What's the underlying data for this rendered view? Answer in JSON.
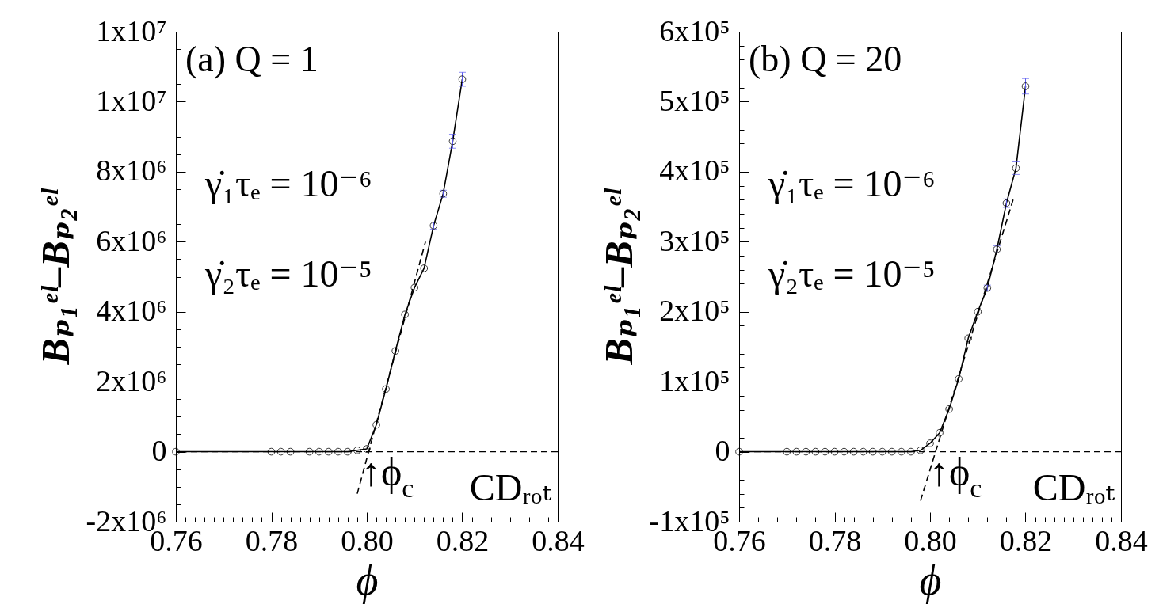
{
  "chart_data": [
    {
      "type": "line",
      "title": "(a) Q = 1",
      "xlabel": "ϕ",
      "ylabel": "Bₚ₁ᵉˡ–Bₚ₂ᵉˡ",
      "x": [
        0.76,
        0.78,
        0.782,
        0.784,
        0.788,
        0.79,
        0.792,
        0.794,
        0.796,
        0.798,
        0.8,
        0.802,
        0.804,
        0.806,
        0.808,
        0.81,
        0.812,
        0.814,
        0.816,
        0.818,
        0.82
      ],
      "series": [
        {
          "color": "#000000",
          "marker": "circle",
          "values": [
            0,
            0,
            0,
            0,
            0,
            0,
            0,
            0,
            0,
            40000,
            80000,
            770000,
            1790000,
            2880000,
            3920000,
            4690000,
            5240000,
            6460000,
            7370000,
            8870000,
            10640000
          ],
          "errors": [
            null,
            null,
            null,
            null,
            null,
            null,
            null,
            null,
            null,
            null,
            null,
            null,
            null,
            null,
            null,
            null,
            null,
            100000,
            100000,
            200000,
            200000
          ]
        },
        {
          "color": "#000000",
          "line_style": "dashed",
          "x": [
            0.798,
            0.8123
          ],
          "values": [
            -1200000,
            6000000
          ]
        }
      ],
      "xlim": [
        0.76,
        0.84
      ],
      "xticks": [
        0.76,
        {
          "value": 0.762,
          "label": null
        },
        {
          "value": 0.764,
          "label": null
        },
        {
          "value": 0.766,
          "label": null
        },
        {
          "value": 0.768,
          "label": null
        },
        {
          "value": 0.77,
          "label": null
        },
        {
          "value": 0.772,
          "label": null
        },
        {
          "value": 0.774,
          "label": null
        },
        {
          "value": 0.776,
          "label": null
        },
        {
          "value": 0.778,
          "label": null
        },
        0.78,
        {
          "value": 0.782,
          "label": null
        },
        {
          "value": 0.784,
          "label": null
        },
        {
          "value": 0.786,
          "label": null
        },
        {
          "value": 0.788,
          "label": null
        },
        {
          "value": 0.79,
          "label": null
        },
        {
          "value": 0.792,
          "label": null
        },
        {
          "value": 0.794,
          "label": null
        },
        {
          "value": 0.796,
          "label": null
        },
        {
          "value": 0.798,
          "label": null
        },
        {
          "value": 0.8,
          "label": "0.80"
        },
        {
          "value": 0.802,
          "label": null
        },
        {
          "value": 0.804,
          "label": null
        },
        {
          "value": 0.806,
          "label": null
        },
        {
          "value": 0.808,
          "label": null
        },
        {
          "value": 0.81,
          "label": null
        },
        {
          "value": 0.812,
          "label": null
        },
        {
          "value": 0.814,
          "label": null
        },
        {
          "value": 0.816,
          "label": null
        },
        {
          "value": 0.818,
          "label": null
        },
        0.82,
        {
          "value": 0.822,
          "label": null
        },
        {
          "value": 0.824,
          "label": null
        },
        {
          "value": 0.826,
          "label": null
        },
        {
          "value": 0.828,
          "label": null
        },
        {
          "value": 0.83,
          "label": null
        },
        {
          "value": 0.832,
          "label": null
        },
        {
          "value": 0.834,
          "label": null
        },
        {
          "value": 0.836,
          "label": null
        },
        {
          "value": 0.838,
          "label": null
        },
        0.84
      ],
      "ylim": [
        -2000000,
        12000000
      ],
      "yticks": [
        {
          "value": -2000000,
          "label": "-2x10⁶"
        },
        {
          "value": -1500000,
          "label": null
        },
        {
          "value": -1000000,
          "label": null
        },
        {
          "value": -500000,
          "label": null
        },
        0,
        {
          "value": 500000,
          "label": null
        },
        {
          "value": 1000000,
          "label": null
        },
        {
          "value": 1500000,
          "label": null
        },
        {
          "value": 2000000,
          "label": "2x10⁶"
        },
        {
          "value": 2500000,
          "label": null
        },
        {
          "value": 3000000,
          "label": null
        },
        {
          "value": 3500000,
          "label": null
        },
        {
          "value": 4000000,
          "label": "4x10⁶"
        },
        {
          "value": 4500000,
          "label": null
        },
        {
          "value": 5000000,
          "label": null
        },
        {
          "value": 5500000,
          "label": null
        },
        {
          "value": 6000000,
          "label": "6x10⁶"
        },
        {
          "value": 6500000,
          "label": null
        },
        {
          "value": 7000000,
          "label": null
        },
        {
          "value": 7500000,
          "label": null
        },
        {
          "value": 8000000,
          "label": "8x10⁶"
        },
        {
          "value": 8500000,
          "label": null
        },
        {
          "value": 9000000,
          "label": null
        },
        {
          "value": 9500000,
          "label": null
        },
        {
          "value": 10000000,
          "label": "1x10⁷"
        },
        {
          "value": 10500000,
          "label": null
        },
        {
          "value": 11000000,
          "label": null
        },
        {
          "value": 11500000,
          "label": null
        },
        {
          "value": 12000000,
          "label": "1x10⁷"
        }
      ],
      "ref_lines": [
        {
          "axis": "y",
          "value": 0,
          "line_style": "dashed",
          "color": "#000000"
        }
      ],
      "annotations": [
        "γ̇₁τₑ = 10⁻⁶",
        "γ̇₂τₑ = 10⁻⁵",
        {
          "text": "↑ϕ$_{c}$",
          "x": 0.8005,
          "y": 0
        },
        "CDᵣₒₜ"
      ]
    },
    {
      "type": "line",
      "title": "(b) Q = 20",
      "xlabel": "ϕ",
      "ylabel": "Bₚ₁ᵉˡ–Bₚ₂ᵉˡ",
      "x": [
        0.76,
        0.77,
        0.772,
        0.774,
        0.776,
        0.778,
        0.78,
        0.782,
        0.784,
        0.786,
        0.788,
        0.79,
        0.792,
        0.794,
        0.796,
        0.798,
        0.8,
        0.802,
        0.804,
        0.806,
        0.808,
        0.81,
        0.812,
        0.814,
        0.816,
        0.818,
        0.82
      ],
      "series": [
        {
          "color": "#000000",
          "marker": "circle",
          "values": [
            0,
            0,
            0,
            0,
            0,
            0,
            0,
            0,
            0,
            0,
            0,
            0,
            0,
            0,
            0,
            2000,
            12000,
            27000,
            61000,
            104000,
            162000,
            200000,
            234000,
            289000,
            355000,
            405000,
            522000
          ],
          "errors": [
            null,
            null,
            null,
            null,
            null,
            null,
            null,
            null,
            null,
            null,
            null,
            null,
            null,
            null,
            null,
            null,
            null,
            null,
            null,
            null,
            null,
            null,
            4000,
            5000,
            6000,
            9000,
            11000
          ]
        },
        {
          "color": "#000000",
          "line_style": "dashed",
          "x": [
            0.798,
            0.8174
          ],
          "values": [
            -70000,
            360000
          ]
        }
      ],
      "xlim": [
        0.76,
        0.84
      ],
      "xticks": [
        0.76,
        {
          "value": 0.762,
          "label": null
        },
        {
          "value": 0.764,
          "label": null
        },
        {
          "value": 0.766,
          "label": null
        },
        {
          "value": 0.768,
          "label": null
        },
        {
          "value": 0.77,
          "label": null
        },
        {
          "value": 0.772,
          "label": null
        },
        {
          "value": 0.774,
          "label": null
        },
        {
          "value": 0.776,
          "label": null
        },
        {
          "value": 0.778,
          "label": null
        },
        0.78,
        {
          "value": 0.782,
          "label": null
        },
        {
          "value": 0.784,
          "label": null
        },
        {
          "value": 0.786,
          "label": null
        },
        {
          "value": 0.788,
          "label": null
        },
        {
          "value": 0.79,
          "label": null
        },
        {
          "value": 0.792,
          "label": null
        },
        {
          "value": 0.794,
          "label": null
        },
        {
          "value": 0.796,
          "label": null
        },
        {
          "value": 0.798,
          "label": null
        },
        {
          "value": 0.8,
          "label": "0.80"
        },
        {
          "value": 0.802,
          "label": null
        },
        {
          "value": 0.804,
          "label": null
        },
        {
          "value": 0.806,
          "label": null
        },
        {
          "value": 0.808,
          "label": null
        },
        {
          "value": 0.81,
          "label": null
        },
        {
          "value": 0.812,
          "label": null
        },
        {
          "value": 0.814,
          "label": null
        },
        {
          "value": 0.816,
          "label": null
        },
        {
          "value": 0.818,
          "label": null
        },
        0.82,
        {
          "value": 0.822,
          "label": null
        },
        {
          "value": 0.824,
          "label": null
        },
        {
          "value": 0.826,
          "label": null
        },
        {
          "value": 0.828,
          "label": null
        },
        {
          "value": 0.83,
          "label": null
        },
        {
          "value": 0.832,
          "label": null
        },
        {
          "value": 0.834,
          "label": null
        },
        {
          "value": 0.836,
          "label": null
        },
        {
          "value": 0.838,
          "label": null
        },
        0.84
      ],
      "ylim": [
        -100000,
        600000
      ],
      "yticks": [
        {
          "value": -100000,
          "label": "-1x10⁵"
        },
        {
          "value": -80000,
          "label": null
        },
        {
          "value": -60000,
          "label": null
        },
        {
          "value": -40000,
          "label": null
        },
        {
          "value": -20000,
          "label": null
        },
        0,
        {
          "value": 20000,
          "label": null
        },
        {
          "value": 40000,
          "label": null
        },
        {
          "value": 60000,
          "label": null
        },
        {
          "value": 80000,
          "label": null
        },
        {
          "value": 100000,
          "label": "1x10⁵"
        },
        {
          "value": 120000,
          "label": null
        },
        {
          "value": 140000,
          "label": null
        },
        {
          "value": 160000,
          "label": null
        },
        {
          "value": 180000,
          "label": null
        },
        {
          "value": 200000,
          "label": "2x10⁵"
        },
        {
          "value": 220000,
          "label": null
        },
        {
          "value": 240000,
          "label": null
        },
        {
          "value": 260000,
          "label": null
        },
        {
          "value": 280000,
          "label": null
        },
        {
          "value": 300000,
          "label": "3x10⁵"
        },
        {
          "value": 320000,
          "label": null
        },
        {
          "value": 340000,
          "label": null
        },
        {
          "value": 360000,
          "label": null
        },
        {
          "value": 380000,
          "label": null
        },
        {
          "value": 400000,
          "label": "4x10⁵"
        },
        {
          "value": 420000,
          "label": null
        },
        {
          "value": 440000,
          "label": null
        },
        {
          "value": 460000,
          "label": null
        },
        {
          "value": 480000,
          "label": null
        },
        {
          "value": 500000,
          "label": "5x10⁵"
        },
        {
          "value": 520000,
          "label": null
        },
        {
          "value": 540000,
          "label": null
        },
        {
          "value": 560000,
          "label": null
        },
        {
          "value": 580000,
          "label": null
        },
        {
          "value": 600000,
          "label": "6x10⁵"
        }
      ],
      "ref_lines": [
        {
          "axis": "y",
          "value": 0,
          "line_style": "dashed",
          "color": "#000000"
        }
      ],
      "annotations": [
        "γ̇₁τₑ = 10⁻⁶",
        "γ̇₂τₑ = 10⁻⁵",
        {
          "text": "↑ϕ$_{c}$",
          "x": 0.8015,
          "y": 0
        },
        "CDᵣₒₜ"
      ]
    }
  ]
}
